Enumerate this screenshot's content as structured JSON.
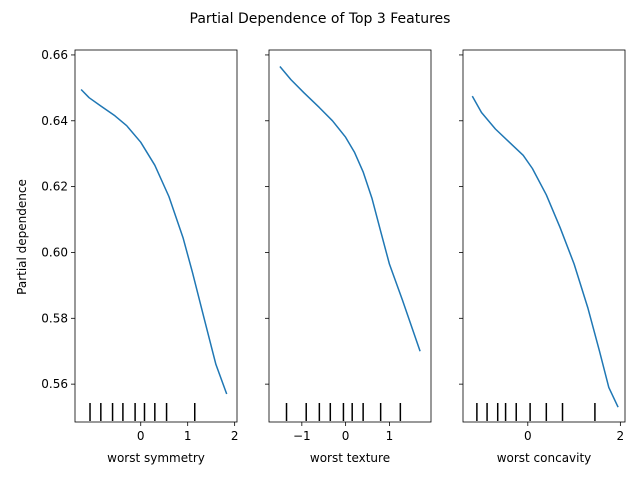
{
  "chart_data": {
    "type": "line",
    "title": "Partial Dependence of Top 3 Features",
    "ylabel": "Partial dependence",
    "ylim": [
      0.5485,
      0.6615
    ],
    "yticks": [
      0.56,
      0.58,
      0.6,
      0.62,
      0.64,
      0.66
    ],
    "ytick_labels": [
      "0.56",
      "0.58",
      "0.60",
      "0.62",
      "0.64",
      "0.66"
    ],
    "line_color": "#1f77b4",
    "grid": false,
    "panels": [
      {
        "xlabel": "worst symmetry",
        "xlim": [
          -1.4,
          2.05
        ],
        "xticks": [
          0,
          1,
          2
        ],
        "xtick_labels": [
          "0",
          "1",
          "2"
        ],
        "x": [
          -1.27,
          -1.1,
          -0.85,
          -0.55,
          -0.3,
          0.0,
          0.3,
          0.6,
          0.9,
          1.1,
          1.35,
          1.6,
          1.83
        ],
        "y": [
          0.6495,
          0.647,
          0.6445,
          0.6415,
          0.6385,
          0.6335,
          0.6265,
          0.617,
          0.6045,
          0.594,
          0.58,
          0.566,
          0.557
        ],
        "rug": [
          -1.08,
          -0.85,
          -0.6,
          -0.38,
          -0.12,
          0.08,
          0.3,
          0.55,
          1.15
        ]
      },
      {
        "xlabel": "worst texture",
        "xlim": [
          -1.75,
          1.95
        ],
        "xticks": [
          -1,
          0,
          1
        ],
        "xtick_labels": [
          "−1",
          "0",
          "1"
        ],
        "x": [
          -1.5,
          -1.25,
          -0.95,
          -0.6,
          -0.3,
          0.0,
          0.2,
          0.4,
          0.6,
          0.8,
          1.0,
          1.3,
          1.7
        ],
        "y": [
          0.6565,
          0.6525,
          0.6485,
          0.644,
          0.64,
          0.635,
          0.6305,
          0.6245,
          0.6165,
          0.6065,
          0.5965,
          0.5855,
          0.57
        ],
        "rug": [
          -1.35,
          -0.9,
          -0.6,
          -0.35,
          -0.05,
          0.15,
          0.4,
          0.8,
          1.25
        ]
      },
      {
        "xlabel": "worst concavity",
        "xlim": [
          -1.4,
          2.1
        ],
        "xticks": [
          0,
          2
        ],
        "xtick_labels": [
          "0",
          "2"
        ],
        "x": [
          -1.2,
          -1.0,
          -0.7,
          -0.4,
          -0.1,
          0.1,
          0.4,
          0.7,
          1.0,
          1.3,
          1.55,
          1.75,
          1.95
        ],
        "y": [
          0.6475,
          0.6425,
          0.6375,
          0.6335,
          0.6295,
          0.6255,
          0.6175,
          0.6075,
          0.5965,
          0.583,
          0.57,
          0.559,
          0.553
        ],
        "rug": [
          -1.1,
          -0.88,
          -0.65,
          -0.48,
          -0.25,
          0.05,
          0.4,
          0.75,
          1.45
        ]
      }
    ]
  }
}
